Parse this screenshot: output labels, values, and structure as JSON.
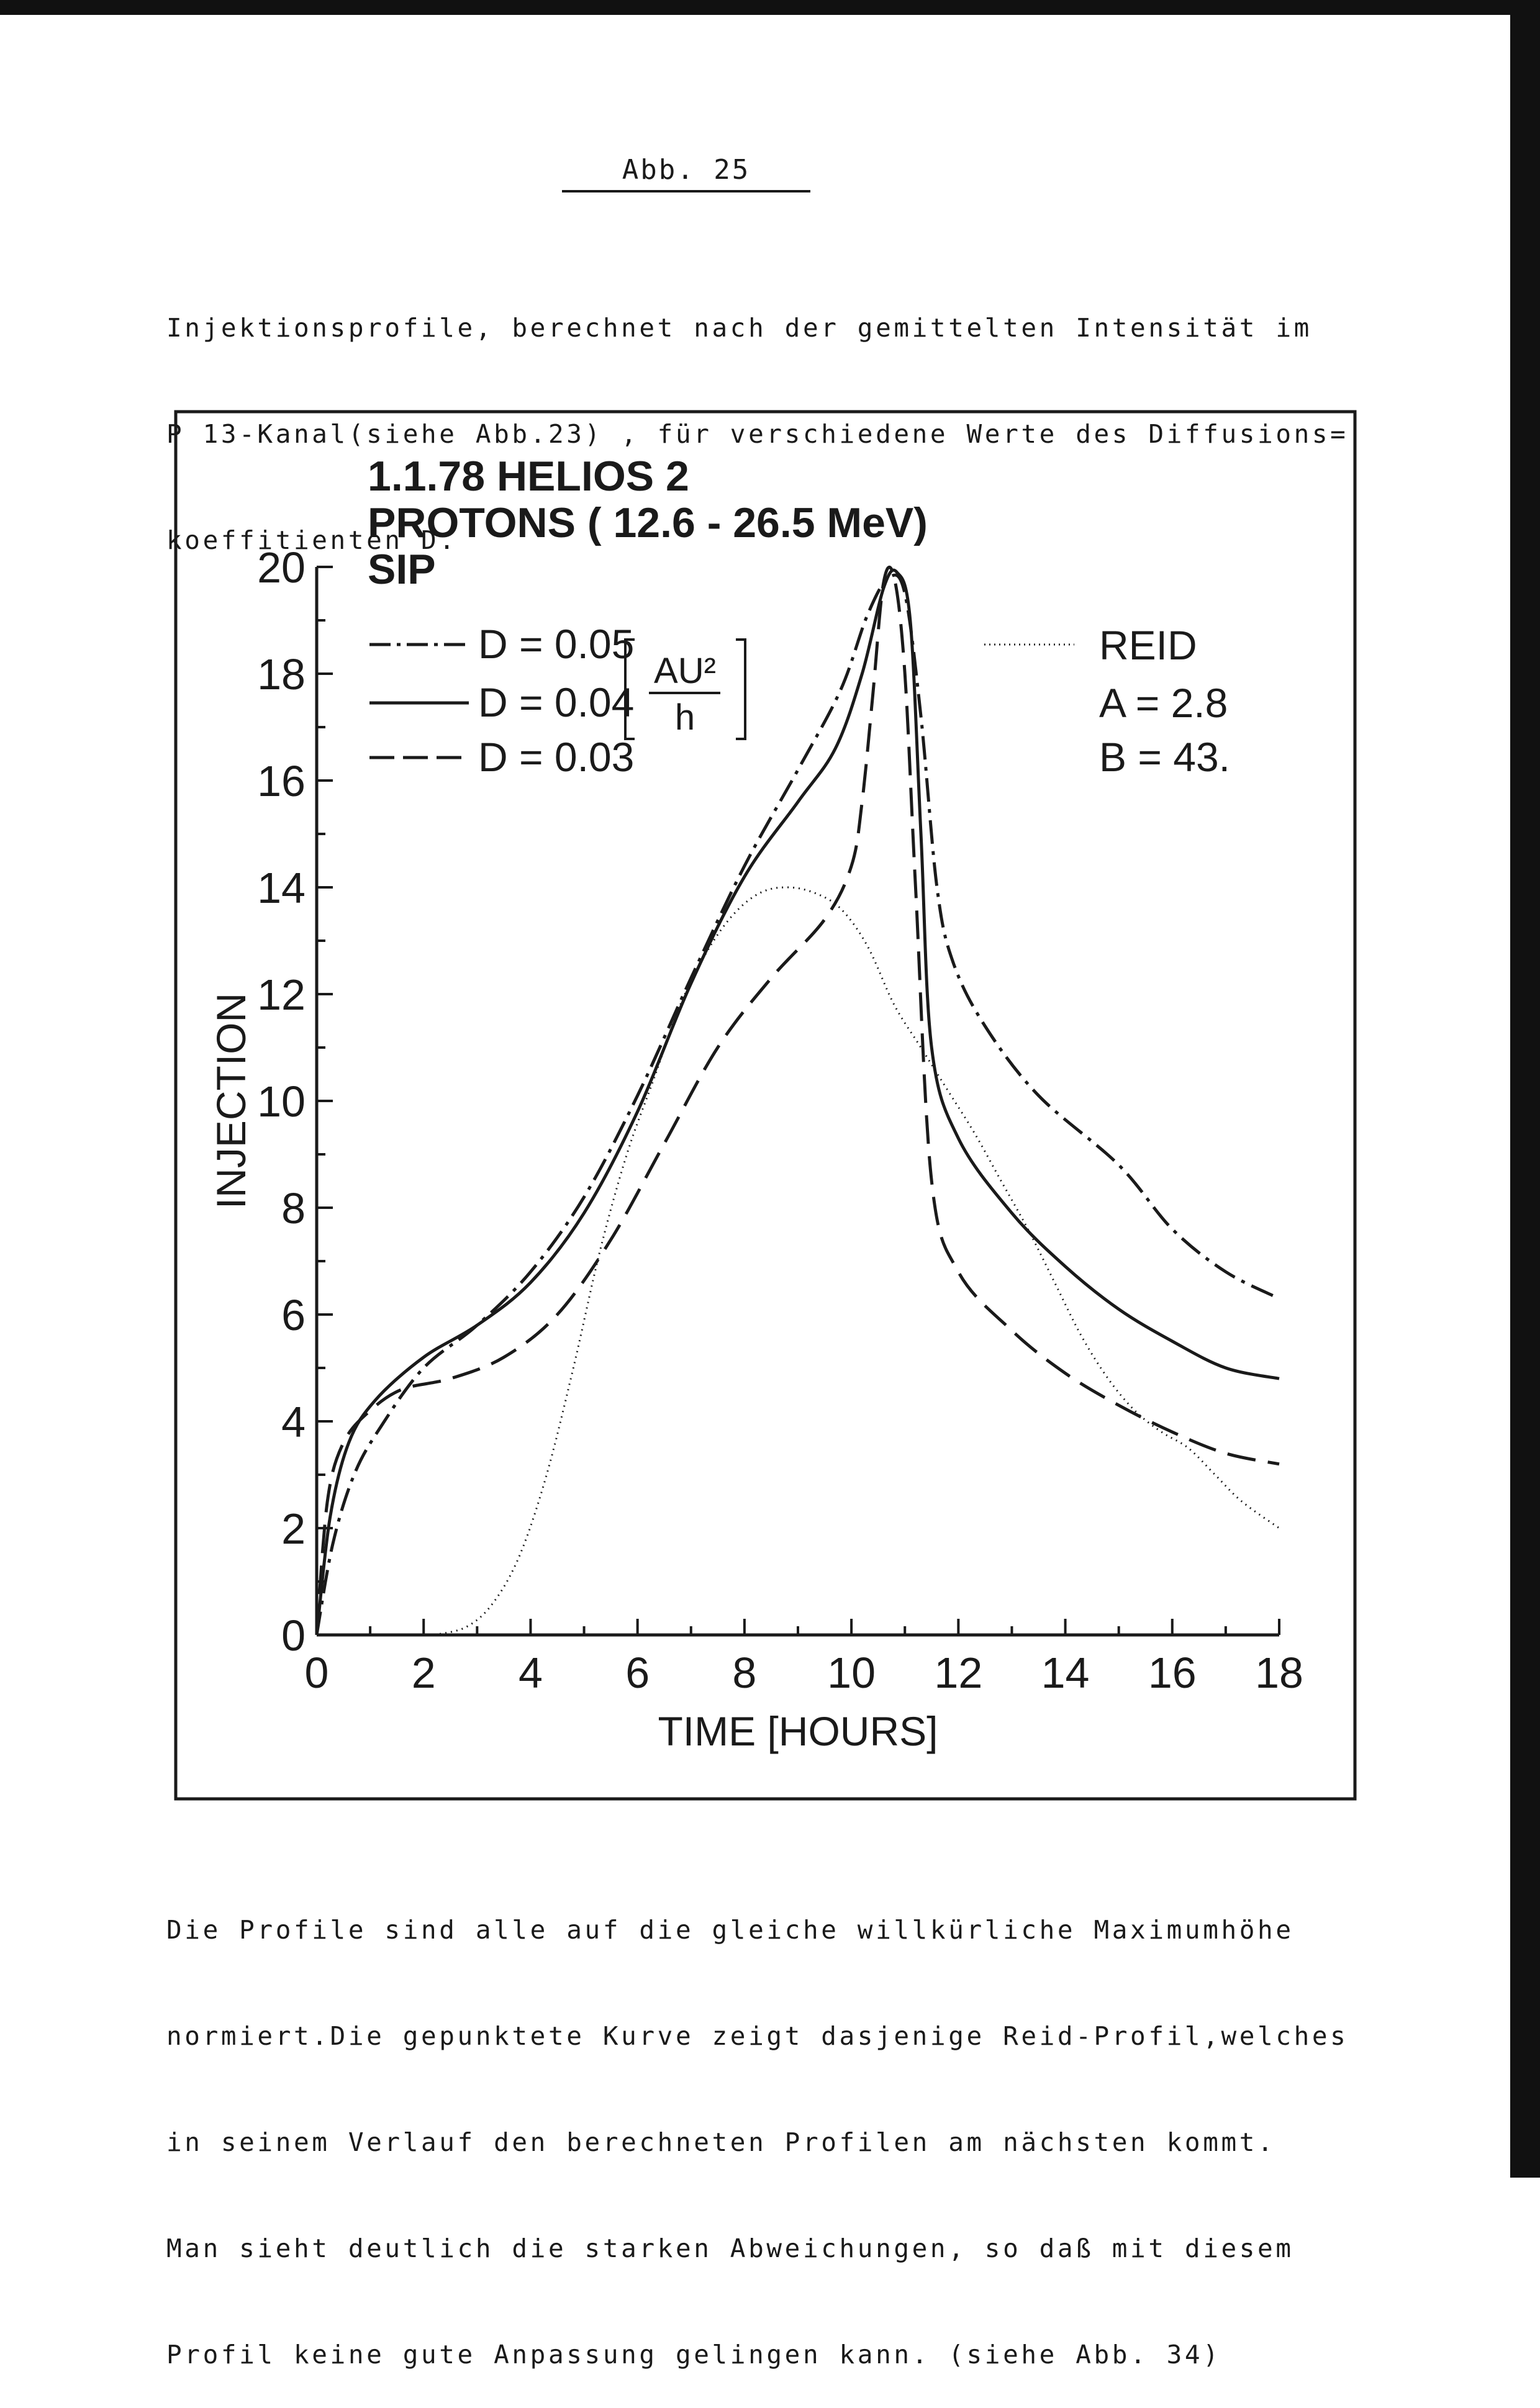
{
  "caption": "Abb. 25",
  "intro_lines": [
    "Injektionsprofile, berechnet nach der gemittelten Intensität im",
    "P 13-Kanal(siehe Abb.23) , für verschiedene Werte des Diffusions=",
    "koeffitienten D."
  ],
  "outro_lines": [
    "Die Profile sind alle auf die gleiche willkürliche Maximumhöhe",
    "normiert.Die gepunktete Kurve zeigt dasjenige Reid-Profil,welches",
    "in seinem Verlauf den berechneten Profilen am nächsten kommt.",
    "Man sieht deutlich die starken Abweichungen, so daß mit diesem",
    "Profil keine gute Anpassung gelingen kann. (siehe Abb. 34)"
  ],
  "chart_data": {
    "type": "line",
    "title_lines": [
      "1.1.78  HELIOS 2",
      "PROTONS ( 12.6 - 26.5 MeV)",
      "SIP"
    ],
    "xlabel": "TIME [HOURS]",
    "ylabel": "INJECTION",
    "xlim": [
      0,
      18
    ],
    "ylim": [
      0,
      20
    ],
    "x_ticks": [
      0,
      2,
      4,
      6,
      8,
      10,
      12,
      14,
      16,
      18
    ],
    "y_ticks": [
      0,
      2,
      4,
      6,
      8,
      10,
      12,
      14,
      16,
      18,
      20
    ],
    "unit": {
      "numerator": "AU²",
      "denominator": "h"
    },
    "reid_labels": [
      "A = 2.8",
      "B = 43."
    ],
    "series": [
      {
        "name": "D = 0.05",
        "style": "dash-dot",
        "points": [
          [
            0,
            0
          ],
          [
            0.3,
            1.7
          ],
          [
            0.7,
            3.0
          ],
          [
            1.2,
            3.9
          ],
          [
            2,
            5.0
          ],
          [
            3,
            5.8
          ],
          [
            4,
            6.8
          ],
          [
            5,
            8.2
          ],
          [
            6,
            10.1
          ],
          [
            7,
            12.3
          ],
          [
            8,
            14.4
          ],
          [
            9,
            16.2
          ],
          [
            9.8,
            17.7
          ],
          [
            10.3,
            19.1
          ],
          [
            10.7,
            19.8
          ],
          [
            11,
            19.5
          ],
          [
            11.3,
            17.2
          ],
          [
            11.6,
            14.0
          ],
          [
            11.9,
            12.6
          ],
          [
            12.5,
            11.4
          ],
          [
            13.5,
            10.1
          ],
          [
            15,
            8.8
          ],
          [
            16,
            7.6
          ],
          [
            17,
            6.8
          ],
          [
            18,
            6.3
          ]
        ]
      },
      {
        "name": "D = 0.04",
        "style": "solid",
        "points": [
          [
            0,
            0
          ],
          [
            0.25,
            2.2
          ],
          [
            0.6,
            3.6
          ],
          [
            1.1,
            4.4
          ],
          [
            2,
            5.2
          ],
          [
            3,
            5.8
          ],
          [
            4,
            6.6
          ],
          [
            5,
            7.9
          ],
          [
            6,
            9.8
          ],
          [
            7,
            12.2
          ],
          [
            8,
            14.2
          ],
          [
            9,
            15.6
          ],
          [
            9.7,
            16.6
          ],
          [
            10.2,
            18.0
          ],
          [
            10.6,
            19.6
          ],
          [
            10.85,
            19.9
          ],
          [
            11.1,
            19.0
          ],
          [
            11.3,
            15.0
          ],
          [
            11.5,
            11.0
          ],
          [
            12,
            9.3
          ],
          [
            13,
            7.9
          ],
          [
            14,
            6.9
          ],
          [
            15,
            6.1
          ],
          [
            16,
            5.5
          ],
          [
            17,
            5.0
          ],
          [
            18,
            4.8
          ]
        ]
      },
      {
        "name": "D = 0.03",
        "style": "dashed",
        "points": [
          [
            0,
            0
          ],
          [
            0.2,
            2.5
          ],
          [
            0.5,
            3.6
          ],
          [
            1,
            4.2
          ],
          [
            1.6,
            4.6
          ],
          [
            2.5,
            4.8
          ],
          [
            3.5,
            5.2
          ],
          [
            4.5,
            6.0
          ],
          [
            5.5,
            7.4
          ],
          [
            6.5,
            9.2
          ],
          [
            7.5,
            11.0
          ],
          [
            8.5,
            12.3
          ],
          [
            9.5,
            13.4
          ],
          [
            10,
            14.4
          ],
          [
            10.2,
            15.6
          ],
          [
            10.4,
            17.6
          ],
          [
            10.6,
            19.7
          ],
          [
            10.8,
            19.8
          ],
          [
            11,
            18.0
          ],
          [
            11.2,
            14.0
          ],
          [
            11.5,
            8.5
          ],
          [
            12,
            6.8
          ],
          [
            13,
            5.7
          ],
          [
            14,
            4.9
          ],
          [
            15,
            4.3
          ],
          [
            16,
            3.8
          ],
          [
            17,
            3.4
          ],
          [
            18,
            3.2
          ]
        ]
      },
      {
        "name": "REID",
        "style": "dotted",
        "points": [
          [
            2.2,
            0
          ],
          [
            2.8,
            0.15
          ],
          [
            3.3,
            0.6
          ],
          [
            3.8,
            1.5
          ],
          [
            4.3,
            3.0
          ],
          [
            4.8,
            5.0
          ],
          [
            5.3,
            7.2
          ],
          [
            5.8,
            9.0
          ],
          [
            6.3,
            10.4
          ],
          [
            6.8,
            11.8
          ],
          [
            7.3,
            12.8
          ],
          [
            7.8,
            13.5
          ],
          [
            8.3,
            13.9
          ],
          [
            8.8,
            14.0
          ],
          [
            9.3,
            13.9
          ],
          [
            9.8,
            13.6
          ],
          [
            10.3,
            12.9
          ],
          [
            10.8,
            11.8
          ],
          [
            11.3,
            11.0
          ],
          [
            11.8,
            10.2
          ],
          [
            12.3,
            9.4
          ],
          [
            12.8,
            8.5
          ],
          [
            13.3,
            7.6
          ],
          [
            13.8,
            6.6
          ],
          [
            14.3,
            5.6
          ],
          [
            14.8,
            4.8
          ],
          [
            15.3,
            4.2
          ],
          [
            15.8,
            3.8
          ],
          [
            16.3,
            3.5
          ],
          [
            16.8,
            3.0
          ],
          [
            17.3,
            2.5
          ],
          [
            18,
            2.0
          ]
        ]
      }
    ]
  }
}
